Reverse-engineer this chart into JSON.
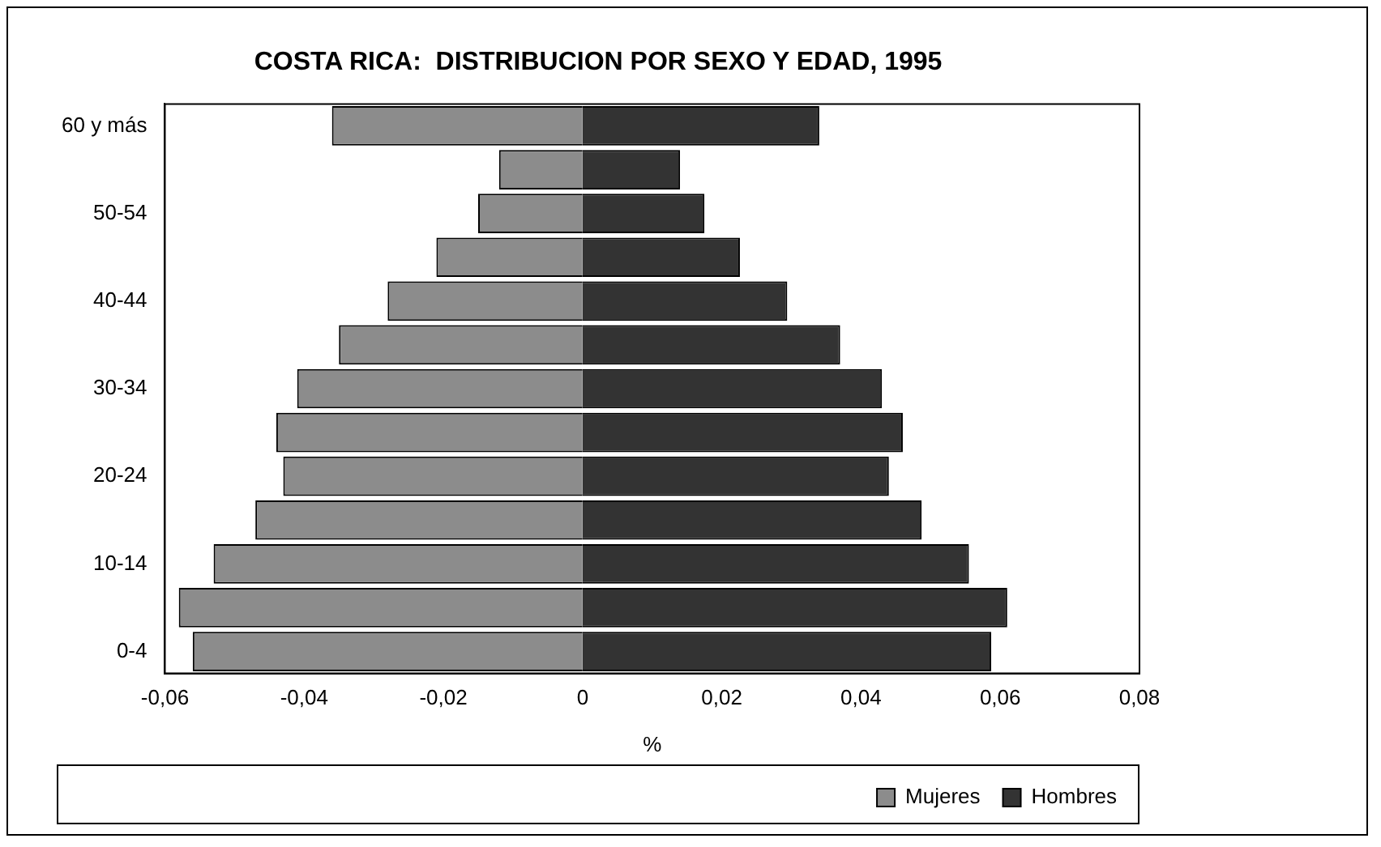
{
  "chart_data": {
    "type": "bar",
    "orientation": "horizontal",
    "stacked": true,
    "title": "COSTA RICA:  DISTRIBUCION POR SEXO Y EDAD, 1995",
    "xlabel": "%",
    "categories": [
      "60 y más",
      null,
      "50-54",
      null,
      "40-44",
      null,
      "30-34",
      null,
      "20-24",
      null,
      "10-14",
      null,
      "0-4"
    ],
    "series": [
      {
        "name": "Mujeres",
        "color": "#8c8c8c",
        "values": [
          -0.036,
          -0.012,
          -0.015,
          -0.021,
          -0.028,
          -0.035,
          -0.041,
          -0.044,
          -0.043,
          -0.047,
          -0.053,
          -0.058,
          -0.056
        ]
      },
      {
        "name": "Hombres",
        "color": "#333333",
        "values": [
          0.034,
          0.014,
          0.0175,
          0.0226,
          0.0294,
          0.037,
          0.043,
          0.046,
          0.044,
          0.0487,
          0.0555,
          0.061,
          0.0587
        ]
      }
    ],
    "xlim": [
      -0.06,
      0.08
    ],
    "xticks": [
      {
        "value": -0.06,
        "label": "-0,06"
      },
      {
        "value": -0.04,
        "label": "-0,04"
      },
      {
        "value": -0.02,
        "label": "-0,02"
      },
      0,
      {
        "value": 0.02,
        "label": "0,02"
      },
      {
        "value": 0.04,
        "label": "0,04"
      },
      {
        "value": 0.06,
        "label": "0,06"
      },
      {
        "value": 0.08,
        "label": "0,08"
      }
    ],
    "grid": false,
    "legend": "bottom right"
  }
}
